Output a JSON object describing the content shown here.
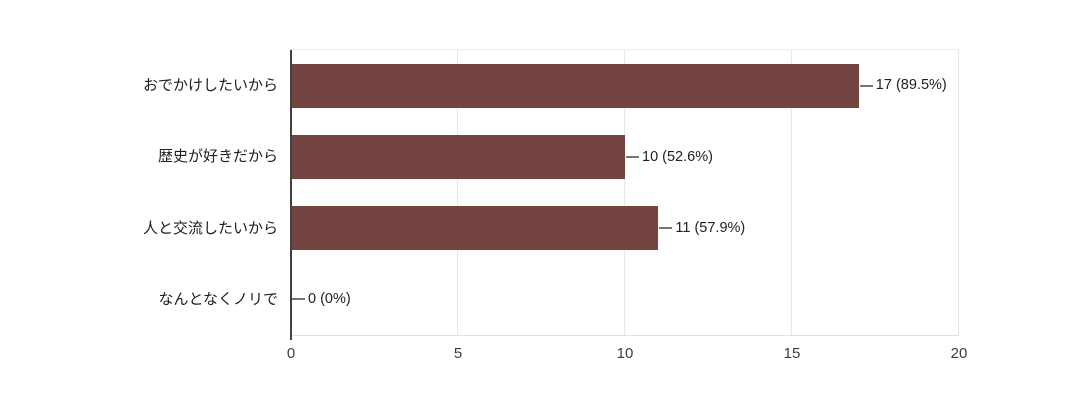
{
  "chart_data": {
    "type": "bar",
    "orientation": "horizontal",
    "title": "",
    "xlabel": "",
    "ylabel": "",
    "categories": [
      "おでかけしたいから",
      "歴史が好きだから",
      "人と交流したいから",
      "なんとなくノリで"
    ],
    "values": [
      17,
      10,
      11,
      0
    ],
    "value_labels": [
      "17 (89.5%)",
      "10 (52.6%)",
      "11 (57.9%)",
      "0 (0%)"
    ],
    "xlim": [
      0,
      20
    ],
    "x_ticks": [
      "0",
      "5",
      "10",
      "15",
      "20"
    ],
    "grid": true,
    "legend_position": "none",
    "colors": {
      "bar": "#744440",
      "category_text": "#212121",
      "value_text": "#212121",
      "tick_text": "#3c3c3c",
      "gridline": "#e8e8e8",
      "plot_top_border": "#ececec",
      "plot_bottom_border": "#e0e0e0",
      "y_axis_line": "#424242",
      "connector": "#757575",
      "background": "#ffffff"
    }
  },
  "layout_hints": {
    "note": "values read from bar ends against axis: 17, 10, 11, 0 of 19 responses"
  }
}
